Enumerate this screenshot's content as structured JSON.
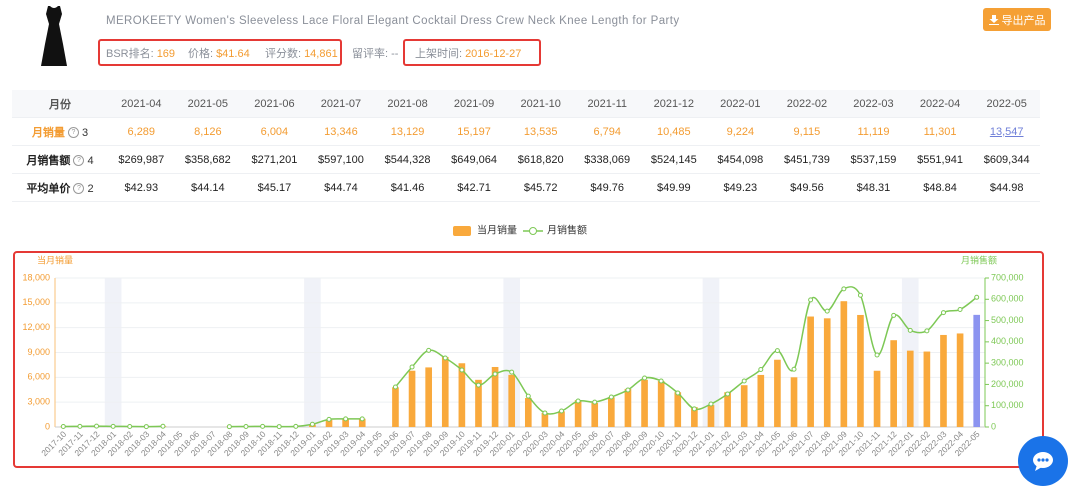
{
  "product": {
    "title": "MEROKEETY Women's Sleeveless Lace Floral Elegant Cocktail Dress Crew Neck Knee Length for Party",
    "stats": [
      {
        "label": "BSR排名:",
        "value": "169"
      },
      {
        "label": "价格:",
        "value": "$41.64"
      },
      {
        "label": "评分数:",
        "value": "14,861"
      },
      {
        "label": "留评率:",
        "value": "--"
      },
      {
        "label": "上架时间:",
        "value": "2016-12-27"
      }
    ],
    "export_button": "导出产品"
  },
  "table": {
    "header": [
      "月份",
      "2021-04",
      "2021-05",
      "2021-06",
      "2021-07",
      "2021-08",
      "2021-09",
      "2021-10",
      "2021-11",
      "2021-12",
      "2022-01",
      "2022-02",
      "2022-03",
      "2022-04",
      "2022-05"
    ],
    "rows": [
      {
        "label": "月销量",
        "count": "3",
        "cells": [
          "6,289",
          "8,126",
          "6,004",
          "13,346",
          "13,129",
          "15,197",
          "13,535",
          "6,794",
          "10,485",
          "9,224",
          "9,115",
          "11,119",
          "11,301",
          "13,547"
        ]
      },
      {
        "label": "月销售额",
        "count": "4",
        "cells": [
          "$269,987",
          "$358,682",
          "$271,201",
          "$597,100",
          "$544,328",
          "$649,064",
          "$618,820",
          "$338,069",
          "$524,145",
          "$454,098",
          "$451,739",
          "$537,159",
          "$551,941",
          "$609,344"
        ]
      },
      {
        "label": "平均单价",
        "count": "2",
        "cells": [
          "$42.93",
          "$44.14",
          "$45.17",
          "$44.74",
          "$41.46",
          "$42.71",
          "$45.72",
          "$49.76",
          "$49.99",
          "$49.23",
          "$49.56",
          "$48.31",
          "$48.84",
          "$44.98"
        ]
      }
    ]
  },
  "chart_data": {
    "type": "combo",
    "legend_position": "top",
    "grid": true,
    "y_title": "当月销量",
    "y2_title": "月销售额",
    "categories": [
      "2017-10",
      "2017-11",
      "2017-12",
      "2018-01",
      "2018-02",
      "2018-03",
      "2018-04",
      "2018-05",
      "2018-06",
      "2018-07",
      "2018-08",
      "2018-09",
      "2018-10",
      "2018-11",
      "2018-12",
      "2019-01",
      "2019-02",
      "2019-03",
      "2019-04",
      "2019-05",
      "2019-06",
      "2019-07",
      "2019-08",
      "2019-09",
      "2019-10",
      "2019-11",
      "2019-12",
      "2020-01",
      "2020-02",
      "2020-03",
      "2020-04",
      "2020-05",
      "2020-06",
      "2020-07",
      "2020-08",
      "2020-09",
      "2020-10",
      "2020-11",
      "2020-12",
      "2021-01",
      "2021-02",
      "2021-03",
      "2021-04",
      "2021-05",
      "2021-06",
      "2021-07",
      "2021-08",
      "2021-09",
      "2021-10",
      "2021-11",
      "2021-12",
      "2022-01",
      "2022-02",
      "2022-03",
      "2022-04",
      "2022-05"
    ],
    "series": [
      {
        "name": "当月销量",
        "type": "bar",
        "axis": "y",
        "color": "#f9a93c",
        "colors": [
          "#f9a93c",
          "#f9a93c",
          "#f9a93c",
          "#f9a93c",
          "#f9a93c",
          "#f9a93c",
          "#f9a93c",
          "#f9a93c",
          "#f9a93c",
          "#f9a93c",
          "#f9a93c",
          "#f9a93c",
          "#f9a93c",
          "#f9a93c",
          "#f9a93c",
          "#f9a93c",
          "#f9a93c",
          "#f9a93c",
          "#f9a93c",
          "#f9a93c",
          "#f9a93c",
          "#f9a93c",
          "#f9a93c",
          "#f9a93c",
          "#f9a93c",
          "#f9a93c",
          "#f9a93c",
          "#f9a93c",
          "#f9a93c",
          "#f9a93c",
          "#f9a93c",
          "#f9a93c",
          "#f9a93c",
          "#f9a93c",
          "#f9a93c",
          "#f9a93c",
          "#f9a93c",
          "#f9a93c",
          "#f9a93c",
          "#f9a93c",
          "#f9a93c",
          "#f9a93c",
          "#f9a93c",
          "#f9a93c",
          "#f9a93c",
          "#f9a93c",
          "#f9a93c",
          "#f9a93c",
          "#f9a93c",
          "#f9a93c",
          "#f9a93c",
          "#f9a93c",
          "#f9a93c",
          "#f9a93c",
          "#f9a93c",
          "#8c94f0"
        ],
        "values": [
          60,
          80,
          100,
          70,
          60,
          50,
          90,
          null,
          null,
          null,
          40,
          60,
          70,
          50,
          80,
          300,
          850,
          1000,
          1000,
          null,
          4800,
          6800,
          7200,
          8450,
          7700,
          5700,
          7250,
          6300,
          3500,
          1700,
          1900,
          3250,
          2900,
          3600,
          4600,
          5700,
          5550,
          4200,
          2400,
          2650,
          4200,
          5050,
          6289,
          8126,
          6004,
          13346,
          13129,
          15197,
          13535,
          6794,
          10485,
          9224,
          9115,
          11119,
          11301,
          13547
        ]
      },
      {
        "name": "月销售额",
        "type": "line",
        "axis": "y2",
        "color": "#7dc855",
        "values": [
          2500,
          3000,
          4000,
          3000,
          2500,
          2000,
          3500,
          null,
          null,
          null,
          1500,
          2500,
          3000,
          2000,
          3000,
          13000,
          36000,
          38000,
          38000,
          null,
          188000,
          282000,
          360000,
          324000,
          268000,
          197000,
          249000,
          258000,
          145000,
          66000,
          75000,
          122000,
          117000,
          141000,
          174000,
          230000,
          216000,
          160000,
          85000,
          108000,
          155000,
          216000,
          269987,
          358682,
          271201,
          597100,
          544328,
          649064,
          618820,
          338069,
          524145,
          454098,
          451739,
          537159,
          551941,
          609344
        ]
      }
    ],
    "ylim": [
      0,
      18000
    ],
    "yticks": [
      0,
      {
        "value": 3000,
        "label": "3,000"
      },
      {
        "value": 6000,
        "label": "6,000"
      },
      {
        "value": 9000,
        "label": "9,000"
      },
      {
        "value": 12000,
        "label": "12,000"
      },
      {
        "value": 15000,
        "label": "15,000"
      },
      {
        "value": 18000,
        "label": "18,000"
      }
    ],
    "y2lim": [
      0,
      700000
    ],
    "y2ticks": [
      0,
      {
        "value": 100000,
        "label": "100,000"
      },
      {
        "value": 200000,
        "label": "200,000"
      },
      {
        "value": 300000,
        "label": "300,000"
      },
      {
        "value": 400000,
        "label": "400,000"
      },
      {
        "value": 500000,
        "label": "500,000"
      },
      {
        "value": 600000,
        "label": "600,000"
      },
      {
        "value": 700000,
        "label": "700,000"
      }
    ]
  }
}
